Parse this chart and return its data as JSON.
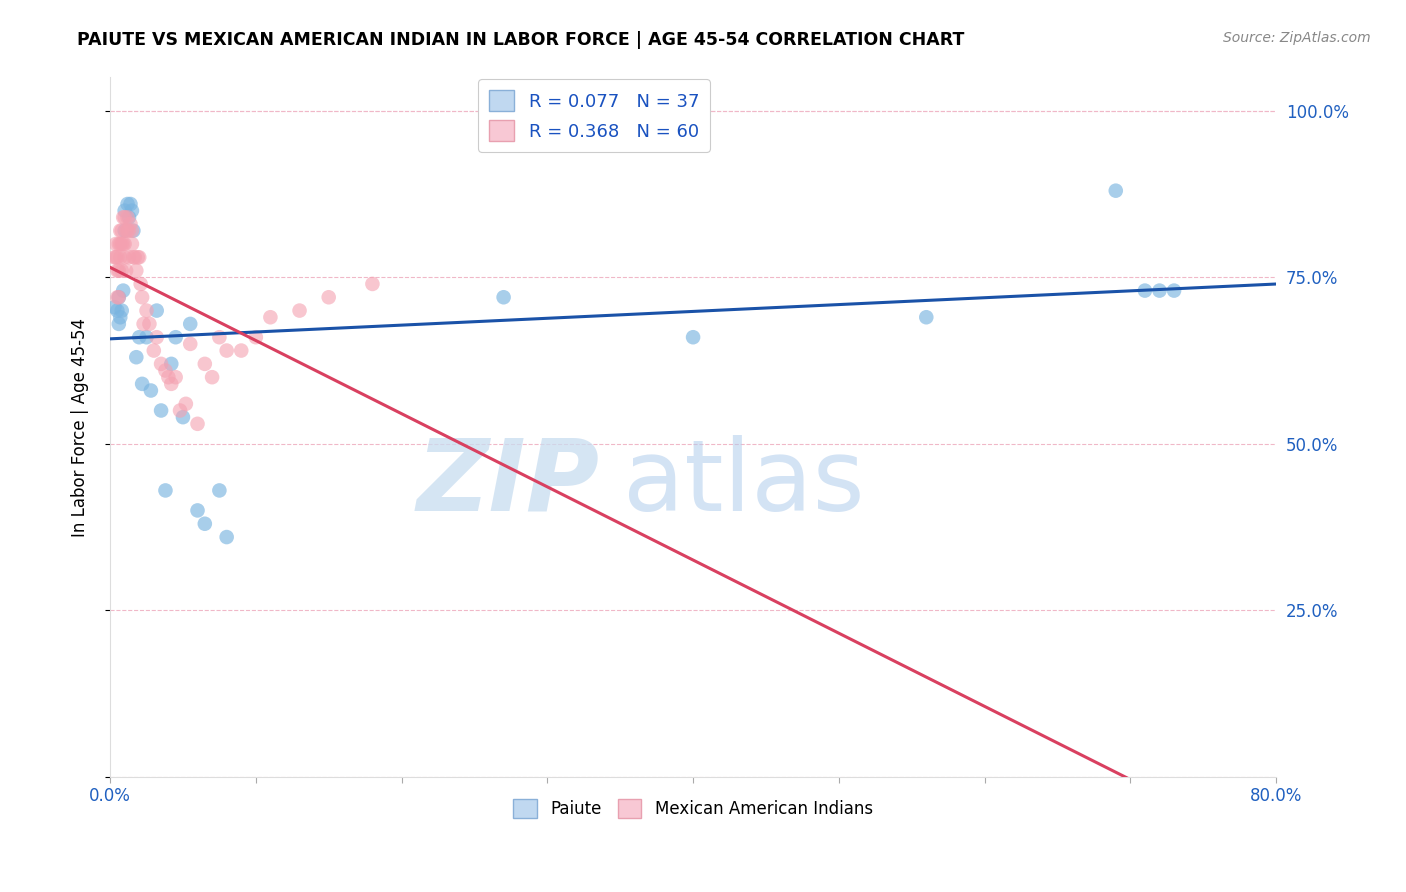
{
  "title": "PAIUTE VS MEXICAN AMERICAN INDIAN IN LABOR FORCE | AGE 45-54 CORRELATION CHART",
  "source_text": "Source: ZipAtlas.com",
  "ylabel": "In Labor Force | Age 45-54",
  "xlim": [
    0.0,
    0.8
  ],
  "ylim": [
    0.0,
    1.05
  ],
  "xticks": [
    0.0,
    0.1,
    0.2,
    0.3,
    0.4,
    0.5,
    0.6,
    0.7,
    0.8
  ],
  "xtick_labels": [
    "0.0%",
    "",
    "",
    "",
    "",
    "",
    "",
    "",
    "80.0%"
  ],
  "ytick_positions": [
    0.0,
    0.25,
    0.5,
    0.75,
    1.0
  ],
  "ytick_labels": [
    "",
    "25.0%",
    "50.0%",
    "75.0%",
    "100.0%"
  ],
  "legend_entries": [
    {
      "label": "R = 0.077   N = 37"
    },
    {
      "label": "R = 0.368   N = 60"
    }
  ],
  "paiute_color": "#7ab4e0",
  "mexican_color": "#f4a0b0",
  "trend_blue": "#1a52a8",
  "trend_pink": "#d94060",
  "watermark_zip": "ZIP",
  "watermark_atlas": "atlas",
  "paiute_x": [
    0.003,
    0.005,
    0.006,
    0.006,
    0.007,
    0.008,
    0.009,
    0.01,
    0.01,
    0.012,
    0.013,
    0.014,
    0.015,
    0.016,
    0.018,
    0.02,
    0.022,
    0.025,
    0.028,
    0.032,
    0.035,
    0.038,
    0.042,
    0.045,
    0.05,
    0.055,
    0.06,
    0.065,
    0.075,
    0.08,
    0.27,
    0.4,
    0.56,
    0.69,
    0.71,
    0.72,
    0.73
  ],
  "paiute_y": [
    0.705,
    0.7,
    0.68,
    0.72,
    0.69,
    0.7,
    0.73,
    0.85,
    0.82,
    0.86,
    0.84,
    0.86,
    0.85,
    0.82,
    0.63,
    0.66,
    0.59,
    0.66,
    0.58,
    0.7,
    0.55,
    0.43,
    0.62,
    0.66,
    0.54,
    0.68,
    0.4,
    0.38,
    0.43,
    0.36,
    0.72,
    0.66,
    0.69,
    0.88,
    0.73,
    0.73,
    0.73
  ],
  "mexican_x": [
    0.003,
    0.004,
    0.004,
    0.005,
    0.005,
    0.005,
    0.006,
    0.006,
    0.006,
    0.007,
    0.007,
    0.007,
    0.008,
    0.008,
    0.008,
    0.009,
    0.009,
    0.01,
    0.01,
    0.01,
    0.011,
    0.011,
    0.012,
    0.012,
    0.013,
    0.013,
    0.014,
    0.015,
    0.015,
    0.016,
    0.017,
    0.018,
    0.019,
    0.02,
    0.021,
    0.022,
    0.023,
    0.025,
    0.027,
    0.03,
    0.032,
    0.035,
    0.038,
    0.04,
    0.042,
    0.045,
    0.048,
    0.052,
    0.055,
    0.06,
    0.065,
    0.07,
    0.075,
    0.08,
    0.09,
    0.1,
    0.11,
    0.13,
    0.15,
    0.18
  ],
  "mexican_y": [
    0.78,
    0.78,
    0.8,
    0.78,
    0.76,
    0.72,
    0.8,
    0.76,
    0.72,
    0.82,
    0.8,
    0.78,
    0.82,
    0.8,
    0.76,
    0.84,
    0.8,
    0.78,
    0.84,
    0.8,
    0.76,
    0.82,
    0.84,
    0.82,
    0.82,
    0.78,
    0.83,
    0.82,
    0.8,
    0.78,
    0.78,
    0.76,
    0.78,
    0.78,
    0.74,
    0.72,
    0.68,
    0.7,
    0.68,
    0.64,
    0.66,
    0.62,
    0.61,
    0.6,
    0.59,
    0.6,
    0.55,
    0.56,
    0.65,
    0.53,
    0.62,
    0.6,
    0.66,
    0.64,
    0.64,
    0.66,
    0.69,
    0.7,
    0.72,
    0.74
  ]
}
